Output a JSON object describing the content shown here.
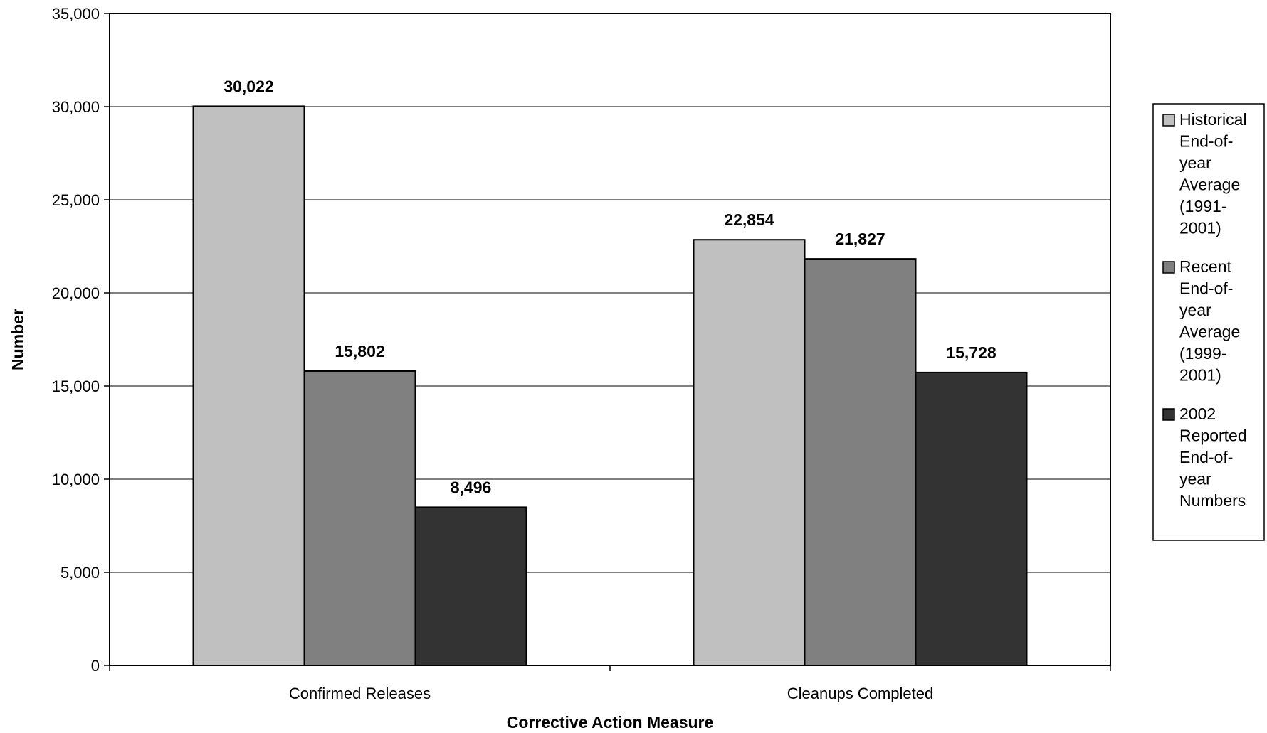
{
  "chart_data": {
    "type": "bar",
    "title": "",
    "xlabel": "Corrective Action Measure",
    "ylabel": "Number",
    "categories": [
      "Confirmed Releases",
      "Cleanups Completed"
    ],
    "series": [
      {
        "name": "Historical End-of-year Average (1991-2001)",
        "legend_lines": [
          "Historical",
          "End-of-",
          "year",
          "Average",
          "(1991-",
          "2001)"
        ],
        "color": "#c0c0c0",
        "values": [
          30022,
          22854
        ],
        "labels": [
          "30,022",
          "22,854"
        ]
      },
      {
        "name": "Recent End-of-year Average (1999-2001)",
        "legend_lines": [
          "Recent",
          "End-of-",
          "year",
          "Average",
          "(1999-",
          "2001)"
        ],
        "color": "#808080",
        "values": [
          15802,
          21827
        ],
        "labels": [
          "15,802",
          "21,827"
        ]
      },
      {
        "name": "2002 Reported End-of-year Numbers",
        "legend_lines": [
          "2002",
          "Reported",
          "End-of-",
          "year",
          "Numbers"
        ],
        "color": "#333333",
        "values": [
          8496,
          15728
        ],
        "labels": [
          "8,496",
          "15,728"
        ]
      }
    ],
    "ylim": [
      0,
      35000
    ],
    "yticks": [
      0,
      5000,
      10000,
      15000,
      20000,
      25000,
      30000,
      35000
    ],
    "ytick_labels": [
      "0",
      "5,000",
      "10,000",
      "15,000",
      "20,000",
      "25,000",
      "30,000",
      "35,000"
    ],
    "grid": true,
    "legend_position": "right"
  }
}
